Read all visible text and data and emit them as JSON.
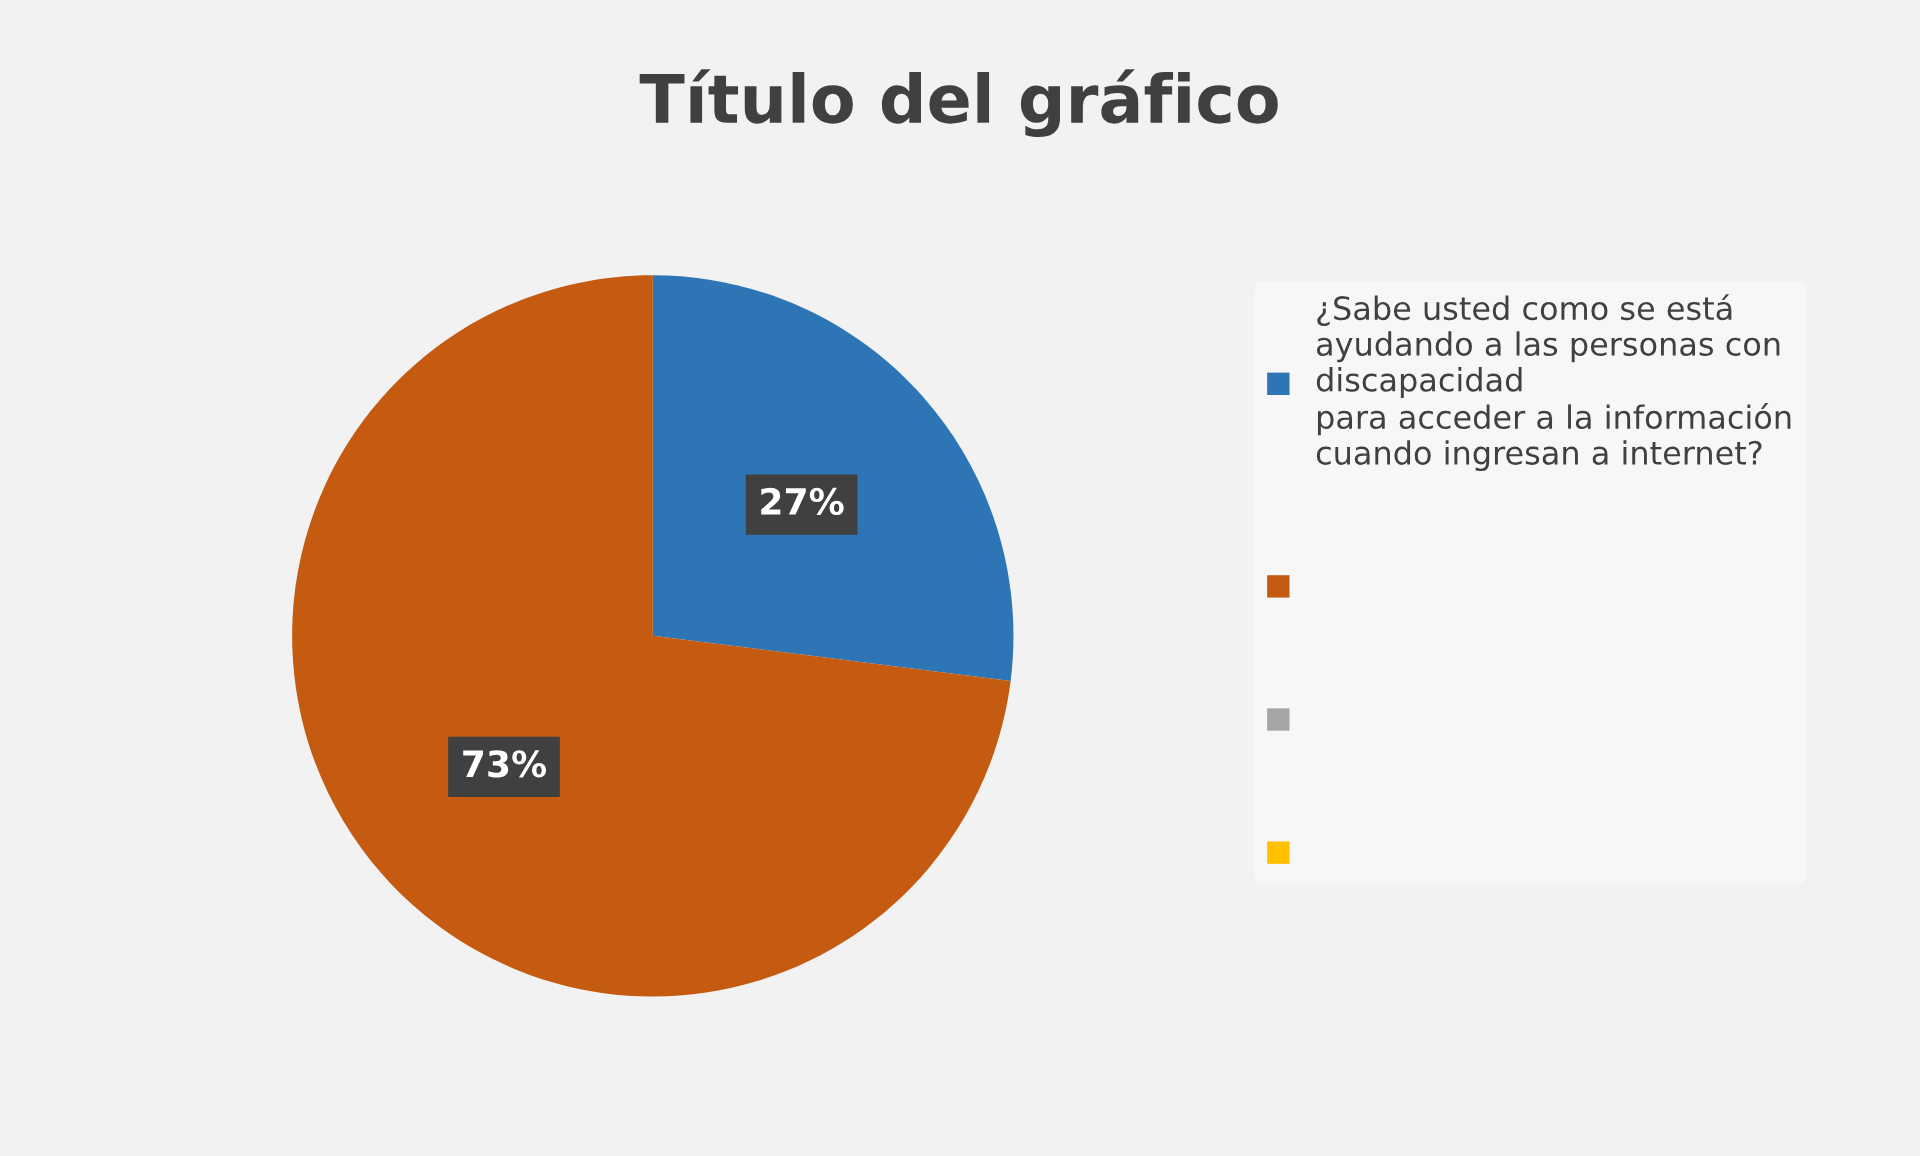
{
  "chart_data": {
    "type": "pie",
    "title": "Título del gráfico",
    "categories": [
      "¿Sabe usted como se está\nayudando a las personas con\ndiscapacidad\npara acceder a la información\ncuando ingresan a internet?",
      null,
      null,
      null
    ],
    "values": [
      27,
      73,
      null,
      null
    ],
    "colors": [
      "#2e75b6",
      "#c55a11",
      "#a5a5a5",
      "#ffc000"
    ],
    "value_labels": [
      "27%",
      "73%",
      null,
      null
    ],
    "legend": "right"
  }
}
